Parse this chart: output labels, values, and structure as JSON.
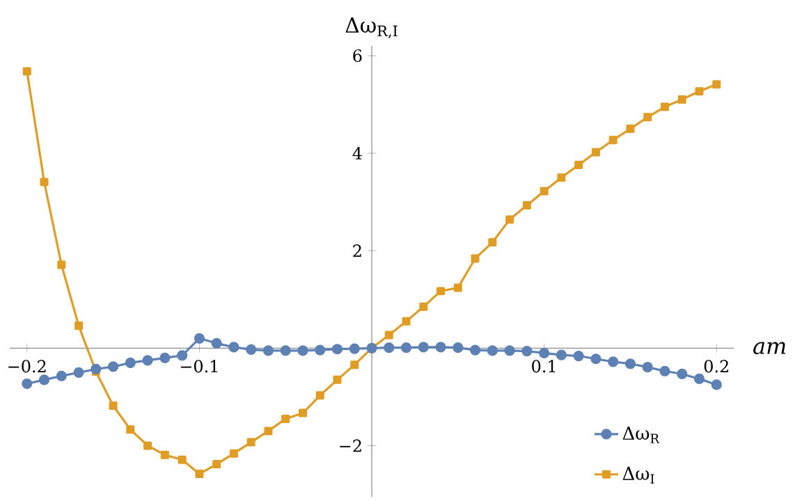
{
  "chart_data": {
    "type": "line",
    "xlabel": "am",
    "ylabel": "Δω$_{R,I}$",
    "x": [
      -0.2,
      -0.19,
      -0.18,
      -0.17,
      -0.16,
      -0.15,
      -0.14,
      -0.13,
      -0.12,
      -0.11,
      -0.1,
      -0.09,
      -0.08,
      -0.07,
      -0.06,
      -0.05,
      -0.04,
      -0.03,
      -0.02,
      -0.01,
      0,
      0.01,
      0.02,
      0.03,
      0.04,
      0.05,
      0.06,
      0.07,
      0.08,
      0.09,
      0.1,
      0.11,
      0.12,
      0.13,
      0.14,
      0.15,
      0.16,
      0.17,
      0.18,
      0.19,
      0.2
    ],
    "series": [
      {
        "name": "Δω$_{R}$",
        "color": "#5e81b5",
        "marker": "circle",
        "values": [
          -0.73,
          -0.65,
          -0.57,
          -0.5,
          -0.43,
          -0.38,
          -0.3,
          -0.25,
          -0.2,
          -0.15,
          0.2,
          0.1,
          0.02,
          -0.03,
          -0.05,
          -0.05,
          -0.05,
          -0.04,
          -0.02,
          -0.01,
          0,
          0.01,
          0.01,
          0.02,
          0.02,
          0.01,
          -0.04,
          -0.05,
          -0.05,
          -0.06,
          -0.1,
          -0.14,
          -0.16,
          -0.22,
          -0.28,
          -0.32,
          -0.39,
          -0.47,
          -0.53,
          -0.63,
          -0.75
        ]
      },
      {
        "name": "Δω$_{I}$",
        "color": "#e19c24",
        "marker": "square",
        "values": [
          5.68,
          3.41,
          1.71,
          0.46,
          -0.48,
          -1.18,
          -1.67,
          -2.0,
          -2.19,
          -2.29,
          -2.58,
          -2.38,
          -2.16,
          -1.93,
          -1.7,
          -1.45,
          -1.33,
          -0.97,
          -0.65,
          -0.34,
          0,
          0.27,
          0.55,
          0.85,
          1.17,
          1.24,
          1.84,
          2.17,
          2.64,
          2.93,
          3.22,
          3.5,
          3.76,
          4.02,
          4.27,
          4.5,
          4.74,
          4.95,
          5.1,
          5.27,
          5.41
        ]
      }
    ],
    "xlim": [
      -0.21,
      0.21
    ],
    "ylim": [
      -3.05,
      6.2
    ],
    "xticks": [
      {
        "value": -0.2,
        "label": "−0.2"
      },
      {
        "value": -0.1,
        "label": "−0.1"
      },
      0.1,
      0.2
    ],
    "yticks": [
      {
        "value": -2,
        "label": "−2"
      },
      2,
      4,
      6
    ],
    "legend": "bottom right",
    "line_style": "solid"
  }
}
